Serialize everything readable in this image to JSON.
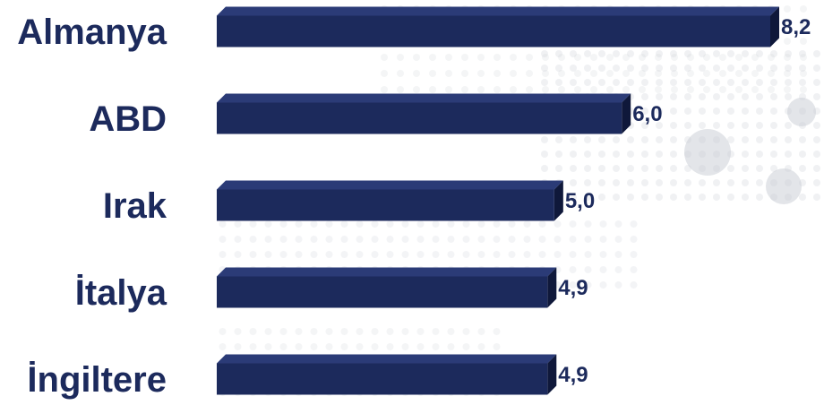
{
  "chart_data": {
    "type": "bar",
    "orientation": "horizontal",
    "categories": [
      "Almanya",
      "ABD",
      "Irak",
      "İtalya",
      "İngiltere"
    ],
    "values": [
      8.2,
      6.0,
      5.0,
      4.9,
      4.9
    ],
    "value_labels": [
      "8,2",
      "6,0",
      "5,0",
      "4,9",
      "4,9"
    ],
    "title": "",
    "xlabel": "",
    "ylabel": "",
    "xlim": [
      0,
      8.2
    ],
    "grid": false,
    "legend": "none",
    "bar_style": "3d"
  },
  "colors": {
    "bar_front": "#1c2a5c",
    "bar_top": "#2b3b77",
    "bar_side": "#0f183a",
    "category_label": "#1c2a5c",
    "value_label": "#1c2a5c",
    "background": "#ffffff",
    "background_pattern": "#c8ccd4"
  }
}
